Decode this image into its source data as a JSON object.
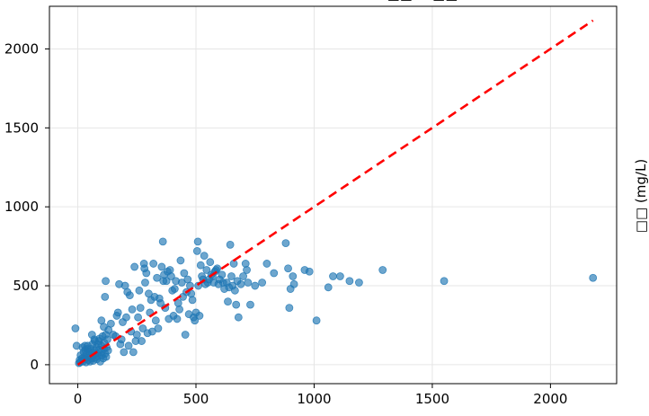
{
  "chart_data": {
    "type": "scatter",
    "title": "□□ = □□",
    "ylabel_right": "□□ (mg/L)",
    "xlim": [
      -120,
      2280
    ],
    "ylim": [
      -120,
      2270
    ],
    "xticks": [
      0,
      500,
      1000,
      1500,
      2000
    ],
    "yticks": [
      0,
      500,
      1000,
      1500,
      2000
    ],
    "grid": true,
    "colors": {
      "points": "#1f77b4",
      "reference_line": "#ff0000",
      "grid": "#e6e6e6"
    },
    "reference_line": {
      "style": "dashed",
      "x": [
        0,
        2180
      ],
      "y": [
        0,
        2180
      ]
    },
    "series": [
      {
        "points": [
          [
            5,
            10
          ],
          [
            8,
            30
          ],
          [
            10,
            15
          ],
          [
            12,
            60
          ],
          [
            15,
            25
          ],
          [
            18,
            40
          ],
          [
            20,
            110
          ],
          [
            22,
            20
          ],
          [
            25,
            80
          ],
          [
            28,
            50
          ],
          [
            30,
            35
          ],
          [
            32,
            95
          ],
          [
            35,
            15
          ],
          [
            38,
            70
          ],
          [
            40,
            45
          ],
          [
            42,
            120
          ],
          [
            45,
            30
          ],
          [
            48,
            85
          ],
          [
            50,
            55
          ],
          [
            52,
            20
          ],
          [
            55,
            100
          ],
          [
            58,
            40
          ],
          [
            60,
            75
          ],
          [
            62,
            130
          ],
          [
            65,
            25
          ],
          [
            68,
            60
          ],
          [
            70,
            90
          ],
          [
            72,
            150
          ],
          [
            75,
            45
          ],
          [
            78,
            110
          ],
          [
            80,
            35
          ],
          [
            82,
            70
          ],
          [
            85,
            130
          ],
          [
            88,
            55
          ],
          [
            90,
            95
          ],
          [
            92,
            165
          ],
          [
            95,
            20
          ],
          [
            98,
            80
          ],
          [
            100,
            120
          ],
          [
            102,
            60
          ],
          [
            105,
            180
          ],
          [
            108,
            40
          ],
          [
            110,
            100
          ],
          [
            112,
            140
          ],
          [
            115,
            70
          ],
          [
            118,
            190
          ],
          [
            120,
            50
          ],
          [
            122,
            110
          ],
          [
            125,
            160
          ],
          [
            128,
            90
          ],
          [
            -10,
            230
          ],
          [
            -5,
            120
          ],
          [
            30,
            120
          ],
          [
            40,
            100
          ],
          [
            60,
            190
          ],
          [
            70,
            160
          ],
          [
            90,
            150
          ],
          [
            100,
            280
          ],
          [
            110,
            240
          ],
          [
            115,
            430
          ],
          [
            118,
            530
          ],
          [
            130,
            220
          ],
          [
            140,
            260
          ],
          [
            150,
            190
          ],
          [
            160,
            180
          ],
          [
            165,
            310
          ],
          [
            170,
            330
          ],
          [
            175,
            510
          ],
          [
            180,
            130
          ],
          [
            185,
            160
          ],
          [
            190,
            270
          ],
          [
            195,
            80
          ],
          [
            200,
            500
          ],
          [
            205,
            300
          ],
          [
            210,
            460
          ],
          [
            215,
            120
          ],
          [
            220,
            440
          ],
          [
            225,
            210
          ],
          [
            230,
            350
          ],
          [
            235,
            80
          ],
          [
            240,
            620
          ],
          [
            245,
            150
          ],
          [
            250,
            190
          ],
          [
            255,
            300
          ],
          [
            260,
            470
          ],
          [
            265,
            360
          ],
          [
            270,
            150
          ],
          [
            275,
            230
          ],
          [
            280,
            640
          ],
          [
            282,
            610
          ],
          [
            285,
            520
          ],
          [
            290,
            580
          ],
          [
            295,
            200
          ],
          [
            300,
            450
          ],
          [
            305,
            330
          ],
          [
            310,
            410
          ],
          [
            315,
            210
          ],
          [
            320,
            640
          ],
          [
            325,
            430
          ],
          [
            330,
            280
          ],
          [
            335,
            550
          ],
          [
            340,
            230
          ],
          [
            345,
            420
          ],
          [
            350,
            390
          ],
          [
            355,
            620
          ],
          [
            360,
            780
          ],
          [
            362,
            530
          ],
          [
            365,
            570
          ],
          [
            370,
            360
          ],
          [
            375,
            530
          ],
          [
            380,
            590
          ],
          [
            385,
            290
          ],
          [
            390,
            600
          ],
          [
            395,
            560
          ],
          [
            400,
            470
          ],
          [
            405,
            310
          ],
          [
            410,
            480
          ],
          [
            415,
            530
          ],
          [
            420,
            290
          ],
          [
            425,
            390
          ],
          [
            430,
            350
          ],
          [
            435,
            660
          ],
          [
            440,
            520
          ],
          [
            445,
            430
          ],
          [
            450,
            580
          ],
          [
            455,
            190
          ],
          [
            460,
            460
          ],
          [
            465,
            540
          ],
          [
            470,
            320
          ],
          [
            475,
            500
          ],
          [
            480,
            450
          ],
          [
            485,
            410
          ],
          [
            490,
            300
          ],
          [
            495,
            280
          ],
          [
            500,
            330
          ],
          [
            505,
            720
          ],
          [
            508,
            780
          ],
          [
            510,
            500
          ],
          [
            515,
            310
          ],
          [
            520,
            630
          ],
          [
            525,
            560
          ],
          [
            530,
            540
          ],
          [
            535,
            690
          ],
          [
            540,
            510
          ],
          [
            545,
            600
          ],
          [
            550,
            520
          ],
          [
            555,
            540
          ],
          [
            560,
            650
          ],
          [
            565,
            570
          ],
          [
            570,
            560
          ],
          [
            575,
            520
          ],
          [
            580,
            590
          ],
          [
            585,
            600
          ],
          [
            590,
            610
          ],
          [
            595,
            510
          ],
          [
            600,
            540
          ],
          [
            610,
            570
          ],
          [
            615,
            520
          ],
          [
            620,
            480
          ],
          [
            630,
            520
          ],
          [
            635,
            400
          ],
          [
            640,
            490
          ],
          [
            645,
            760
          ],
          [
            650,
            560
          ],
          [
            655,
            500
          ],
          [
            660,
            640
          ],
          [
            665,
            470
          ],
          [
            670,
            380
          ],
          [
            675,
            530
          ],
          [
            680,
            300
          ],
          [
            690,
            510
          ],
          [
            700,
            560
          ],
          [
            710,
            640
          ],
          [
            715,
            600
          ],
          [
            720,
            520
          ],
          [
            730,
            380
          ],
          [
            750,
            500
          ],
          [
            780,
            520
          ],
          [
            800,
            640
          ],
          [
            830,
            580
          ],
          [
            880,
            770
          ],
          [
            890,
            610
          ],
          [
            895,
            360
          ],
          [
            900,
            480
          ],
          [
            910,
            560
          ],
          [
            915,
            510
          ],
          [
            960,
            600
          ],
          [
            980,
            590
          ],
          [
            1010,
            280
          ],
          [
            1060,
            490
          ],
          [
            1080,
            560
          ],
          [
            1110,
            560
          ],
          [
            1150,
            530
          ],
          [
            1190,
            520
          ],
          [
            1290,
            600
          ],
          [
            1550,
            530
          ],
          [
            2180,
            550
          ]
        ]
      }
    ]
  }
}
